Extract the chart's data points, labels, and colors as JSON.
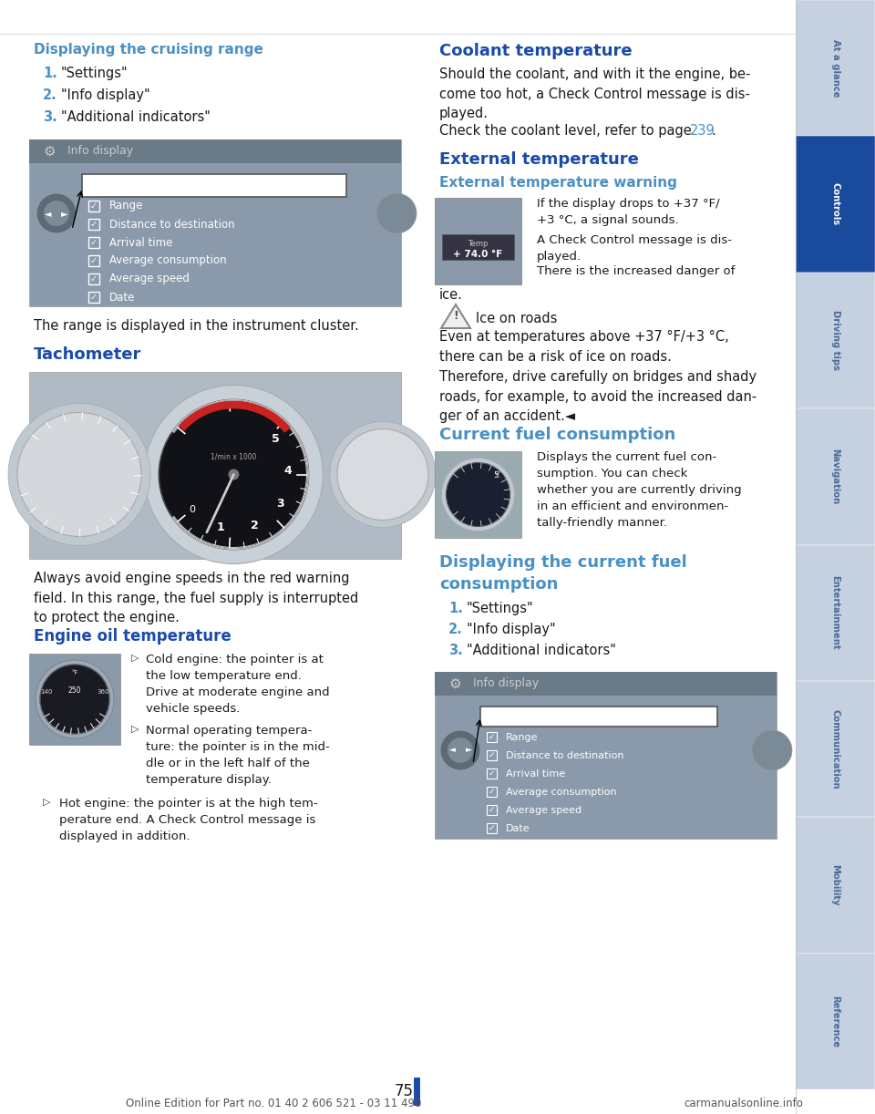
{
  "page_bg": "#ffffff",
  "sidebar_bg": "#c5d0e0",
  "sidebar_active_bg": "#1a4a9c",
  "sidebar_labels": [
    "At a glance",
    "Controls",
    "Driving tips",
    "Navigation",
    "Entertainment",
    "Communication",
    "Mobility",
    "Reference"
  ],
  "sidebar_active_index": 1,
  "sidebar_text_color": "#4a6a9a",
  "sidebar_active_text_color": "#ffffff",
  "heading_blue": "#4a90c4",
  "heading_bold_blue": "#1a4aaa",
  "body_color": "#1a1a1a",
  "link_color": "#4a90c4",
  "number_color": "#4a90c4",
  "footer_color": "#555555",
  "page_number": "75",
  "footer_text": "Online Edition for Part no. 01 40 2 606 521 - 03 11 490",
  "footer_right": "carmanualsonline.info",
  "menu_items": [
    "Additional indicators",
    "Range",
    "Distance to destination",
    "Arrival time",
    "Average consumption",
    "Average speed",
    "Date"
  ],
  "left_items": [
    "\"Settings\"",
    "\"Info display\"",
    "\"Additional indicators\""
  ],
  "right_items": [
    "\"Settings\"",
    "\"Info display\"",
    "\"Additional indicators\""
  ]
}
